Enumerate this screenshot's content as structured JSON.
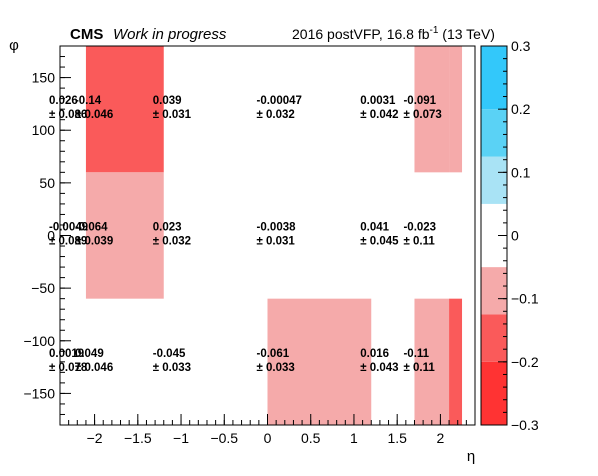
{
  "header": {
    "cms": "CMS",
    "wip": "Work in progress",
    "lumi_prefix": "2016 postVFP, 16.8 fb",
    "lumi_sup": "-1",
    "lumi_suffix": " (13 TeV)"
  },
  "chart_data": {
    "type": "heatmap",
    "xlabel": "η",
    "ylabel": "φ",
    "xlim": [
      -2.4,
      2.4
    ],
    "ylim": [
      -180,
      180
    ],
    "x_ticks": [
      -2,
      -1.5,
      -1,
      -0.5,
      0,
      0.5,
      1,
      1.5,
      2
    ],
    "x_tick_labels": [
      "−2",
      "−1.5",
      "−1",
      "−0.5",
      "0",
      "0.5",
      "1",
      "1.5",
      "2"
    ],
    "y_ticks": [
      -150,
      -100,
      -50,
      0,
      50,
      100,
      150
    ],
    "y_tick_labels": [
      "−150",
      "−100",
      "−50",
      "0",
      "50",
      "100",
      "150"
    ],
    "x_edges": [
      -2.4,
      -2.1,
      -1.2,
      -0.3,
      0.0,
      1.2,
      1.7,
      2.1,
      2.4
    ],
    "y_edges": [
      -180,
      -60,
      60,
      180
    ],
    "zlim": [
      -0.3,
      0.3
    ],
    "z_ticks": [
      -0.3,
      -0.2,
      -0.1,
      0,
      0.1,
      0.2,
      0.3
    ],
    "z_tick_labels": [
      "−0.3",
      "−0.2",
      "−0.1",
      "0",
      "0.1",
      "0.2",
      "0.3"
    ],
    "palette": [
      {
        "lo": -0.3,
        "hi": -0.2,
        "color": "#ff3333"
      },
      {
        "lo": -0.2,
        "hi": -0.125,
        "color": "#fa5a5a"
      },
      {
        "lo": -0.125,
        "hi": -0.05,
        "color": "#f5aaaa"
      },
      {
        "lo": -0.05,
        "hi": 0.05,
        "color": "#ffffff"
      },
      {
        "lo": 0.05,
        "hi": 0.125,
        "color": "#a9e3f5"
      },
      {
        "lo": 0.125,
        "hi": 0.2,
        "color": "#5ad2f5"
      },
      {
        "lo": 0.2,
        "hi": 0.3,
        "color": "#33c8fa"
      }
    ],
    "cells": [
      {
        "xi": 0,
        "yi": 2,
        "value": 0.026,
        "label": "0.026",
        "err": "± 0.086"
      },
      {
        "xi": 1,
        "yi": 2,
        "value": -0.14,
        "label": "-0.14",
        "err": "± 0.046"
      },
      {
        "xi": 2,
        "yi": 2,
        "value": 0.039,
        "label": "0.039",
        "err": "± 0.031"
      },
      {
        "xi": 4,
        "yi": 2,
        "value": -0.00047,
        "label": "-0.00047",
        "err": "± 0.032"
      },
      {
        "xi": 5,
        "yi": 2,
        "value": 0.0031,
        "label": "0.0031",
        "err": "± 0.042"
      },
      {
        "xi": 6,
        "yi": 2,
        "value": -0.091,
        "label": "-0.091",
        "err": "± 0.073"
      },
      {
        "xi": 0,
        "yi": 1,
        "value": -0.0049,
        "label": "-0.0049",
        "err": "± 0.089"
      },
      {
        "xi": 1,
        "yi": 1,
        "value": -0.064,
        "label": "-0.064",
        "err": "± 0.039"
      },
      {
        "xi": 2,
        "yi": 1,
        "value": 0.023,
        "label": "0.023",
        "err": "± 0.032"
      },
      {
        "xi": 4,
        "yi": 1,
        "value": -0.0038,
        "label": "-0.0038",
        "err": "± 0.031"
      },
      {
        "xi": 5,
        "yi": 1,
        "value": 0.041,
        "label": "0.041",
        "err": "± 0.045"
      },
      {
        "xi": 6,
        "yi": 1,
        "value": -0.023,
        "label": "-0.023",
        "err": "± 0.11"
      },
      {
        "xi": 0,
        "yi": 0,
        "value": 0.0019,
        "label": "0.0019",
        "err": "± 0.078"
      },
      {
        "xi": 1,
        "yi": 0,
        "value": 0.049,
        "label": "0.049",
        "err": "± 0.046"
      },
      {
        "xi": 2,
        "yi": 0,
        "value": -0.045,
        "label": "-0.045",
        "err": "± 0.033"
      },
      {
        "xi": 4,
        "yi": 0,
        "value": -0.061,
        "label": "-0.061",
        "err": "± 0.033"
      },
      {
        "xi": 5,
        "yi": 0,
        "value": 0.016,
        "label": "0.016",
        "err": "± 0.043"
      },
      {
        "xi": 6,
        "yi": 0,
        "value": -0.11,
        "label": "-0.11",
        "err": "± 0.11"
      }
    ],
    "edge_strip": [
      {
        "yi": 2,
        "value": -0.091
      },
      {
        "yi": 1,
        "value": -0.023
      },
      {
        "yi": 0,
        "value": -0.16
      }
    ]
  }
}
